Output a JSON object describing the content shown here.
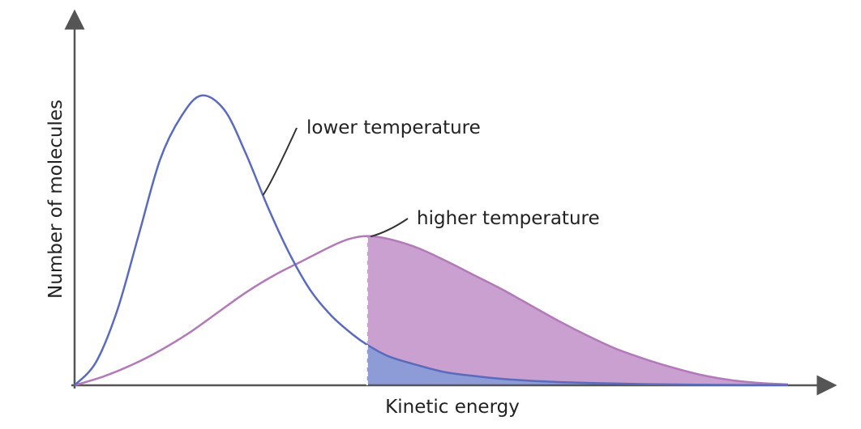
{
  "chart_data": {
    "type": "line",
    "title": "",
    "xlabel": "Kinetic energy",
    "ylabel": "Number of molecules",
    "xlim": [
      0,
      100
    ],
    "ylim": [
      0,
      100
    ],
    "grid": false,
    "threshold_x": 41,
    "series": [
      {
        "name": "lower temperature",
        "color": "#5a6bbd",
        "fill_color": "#8d9bd6",
        "points": [
          [
            0,
            0
          ],
          [
            3,
            8
          ],
          [
            6,
            26
          ],
          [
            9,
            52
          ],
          [
            12,
            78
          ],
          [
            15,
            93
          ],
          [
            17.8,
            100
          ],
          [
            21,
            95
          ],
          [
            24,
            80
          ],
          [
            27,
            62
          ],
          [
            30,
            46
          ],
          [
            33,
            33
          ],
          [
            36,
            24
          ],
          [
            39,
            17.5
          ],
          [
            41,
            14
          ],
          [
            44,
            10
          ],
          [
            48,
            7
          ],
          [
            52,
            4.5
          ],
          [
            56,
            3.2
          ],
          [
            60,
            2.2
          ],
          [
            66,
            1.3
          ],
          [
            72,
            0.8
          ],
          [
            80,
            0.4
          ],
          [
            90,
            0.15
          ],
          [
            100,
            0.05
          ]
        ]
      },
      {
        "name": "higher temperature",
        "color": "#b27ab8",
        "fill_color": "#c9a0cf",
        "points": [
          [
            0,
            0
          ],
          [
            4,
            3
          ],
          [
            8,
            7
          ],
          [
            12,
            12
          ],
          [
            16,
            18
          ],
          [
            20,
            25
          ],
          [
            24,
            32
          ],
          [
            28,
            38
          ],
          [
            32,
            43
          ],
          [
            36,
            48
          ],
          [
            38.5,
            50.5
          ],
          [
            41,
            51.5
          ],
          [
            44,
            50.5
          ],
          [
            48,
            47.5
          ],
          [
            52,
            43
          ],
          [
            56,
            38
          ],
          [
            60,
            33
          ],
          [
            64,
            27.5
          ],
          [
            68,
            22
          ],
          [
            72,
            17
          ],
          [
            76,
            12.5
          ],
          [
            80,
            9
          ],
          [
            84,
            6
          ],
          [
            88,
            3.5
          ],
          [
            92,
            1.8
          ],
          [
            96,
            0.8
          ],
          [
            100,
            0.3
          ]
        ]
      }
    ]
  }
}
